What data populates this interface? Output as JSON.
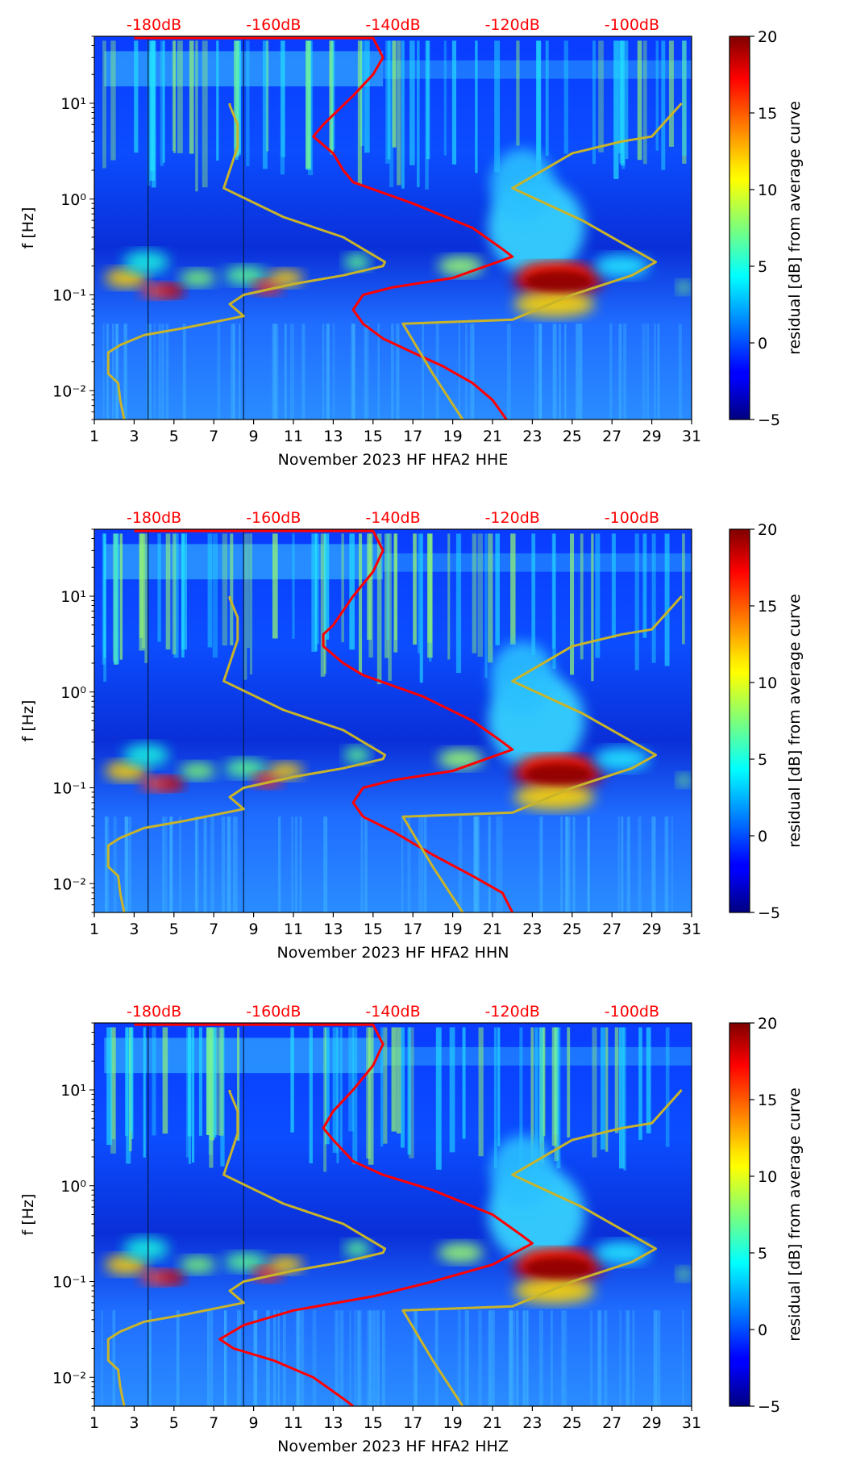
{
  "chart_data": [
    {
      "type": "heatmap",
      "title": "",
      "xlabel": "November 2023 HF HFA2  HHE",
      "ylabel": "f [Hz]",
      "xlim": [
        1,
        31
      ],
      "ylim": [
        0.005,
        50
      ],
      "yscale": "log",
      "x_ticks": [
        "1",
        "3",
        "5",
        "7",
        "9",
        "11",
        "13",
        "15",
        "17",
        "19",
        "21",
        "23",
        "25",
        "27",
        "29",
        "31"
      ],
      "y_ticks": [
        {
          "value": 0.01,
          "label": "10⁻²"
        },
        {
          "value": 0.1,
          "label": "10⁻¹"
        },
        {
          "value": 1,
          "label": "10⁰"
        },
        {
          "value": 10,
          "label": "10¹"
        }
      ],
      "db_axis": {
        "labels": [
          "-180dB",
          "-160dB",
          "-140dB",
          "-120dB",
          "-100dB"
        ],
        "positions_day": [
          4,
          10,
          16,
          22,
          28
        ],
        "color": "#ff0000"
      },
      "colorbar": {
        "label": "residual [dB] from average curve",
        "range": [
          -5,
          20
        ],
        "ticks": [
          "−5",
          "0",
          "5",
          "10",
          "15",
          "20"
        ],
        "colormap": "jet"
      },
      "series": [
        {
          "name": "average curve",
          "color": "#ff0000",
          "points": [
            [
              3,
              48
            ],
            [
              15,
              48
            ],
            [
              15.5,
              30
            ],
            [
              15,
              20
            ],
            [
              14,
              12
            ],
            [
              12.5,
              6
            ],
            [
              12,
              4.5
            ],
            [
              13,
              3
            ],
            [
              13.5,
              2
            ],
            [
              14,
              1.5
            ],
            [
              17,
              0.9
            ],
            [
              20,
              0.5
            ],
            [
              21.5,
              0.3
            ],
            [
              22,
              0.25
            ],
            [
              19,
              0.15
            ],
            [
              16,
              0.12
            ],
            [
              14.5,
              0.1
            ],
            [
              14,
              0.07
            ],
            [
              14.5,
              0.05
            ],
            [
              15.5,
              0.035
            ],
            [
              17,
              0.025
            ],
            [
              18.5,
              0.018
            ],
            [
              20,
              0.012
            ],
            [
              21,
              0.008
            ],
            [
              21.7,
              0.005
            ]
          ]
        },
        {
          "name": "model curve",
          "color": "#c8b42a",
          "points": [
            [
              2.5,
              0.005
            ],
            [
              2.3,
              0.008
            ],
            [
              2.2,
              0.012
            ],
            [
              1.7,
              0.015
            ],
            [
              1.7,
              0.025
            ],
            [
              2.3,
              0.03
            ],
            [
              3.5,
              0.038
            ],
            [
              5.5,
              0.045
            ],
            [
              8.5,
              0.06
            ],
            [
              7.8,
              0.08
            ],
            [
              8.5,
              0.1
            ],
            [
              11,
              0.13
            ],
            [
              13.5,
              0.16
            ],
            [
              15.5,
              0.2
            ],
            [
              15.6,
              0.22
            ],
            [
              13.5,
              0.4
            ],
            [
              10.5,
              0.65
            ],
            [
              7.5,
              1.3
            ],
            [
              8.2,
              3.5
            ],
            [
              8.2,
              6
            ],
            [
              7.8,
              9.5
            ],
            [
              7.8,
              10
            ]
          ]
        },
        {
          "name": "model curve 2",
          "color": "#c8b42a",
          "points": [
            [
              19.5,
              0.005
            ],
            [
              18,
              0.015
            ],
            [
              16.5,
              0.05
            ],
            [
              22,
              0.055
            ],
            [
              25,
              0.1
            ],
            [
              28,
              0.16
            ],
            [
              29.2,
              0.22
            ],
            [
              25.5,
              0.6
            ],
            [
              22,
              1.3
            ],
            [
              25,
              3
            ],
            [
              27.5,
              4
            ],
            [
              29,
              4.5
            ],
            [
              30.5,
              10
            ]
          ]
        }
      ],
      "annotations": [
        "hot spot ~0.15 Hz days 22.5-25.5",
        "warm band ~0.1-0.2 Hz days 2-11"
      ]
    },
    {
      "type": "heatmap",
      "title": "",
      "xlabel": "November 2023 HF HFA2  HHN",
      "ylabel": "f [Hz]",
      "xlim": [
        1,
        31
      ],
      "ylim": [
        0.005,
        50
      ],
      "yscale": "log",
      "x_ticks": [
        "1",
        "3",
        "5",
        "7",
        "9",
        "11",
        "13",
        "15",
        "17",
        "19",
        "21",
        "23",
        "25",
        "27",
        "29",
        "31"
      ],
      "y_ticks": [
        {
          "value": 0.01,
          "label": "10⁻²"
        },
        {
          "value": 0.1,
          "label": "10⁻¹"
        },
        {
          "value": 1,
          "label": "10⁰"
        },
        {
          "value": 10,
          "label": "10¹"
        }
      ],
      "db_axis": {
        "labels": [
          "-180dB",
          "-160dB",
          "-140dB",
          "-120dB",
          "-100dB"
        ],
        "positions_day": [
          4,
          10,
          16,
          22,
          28
        ],
        "color": "#ff0000"
      },
      "colorbar": {
        "label": "residual [dB] from average curve",
        "range": [
          -5,
          20
        ],
        "ticks": [
          "−5",
          "0",
          "5",
          "10",
          "15",
          "20"
        ],
        "colormap": "jet"
      },
      "series": [
        {
          "name": "average curve",
          "color": "#ff0000",
          "points": [
            [
              3,
              48
            ],
            [
              15,
              48
            ],
            [
              15.5,
              30
            ],
            [
              15,
              18
            ],
            [
              14,
              10
            ],
            [
              13,
              5
            ],
            [
              12.5,
              4
            ],
            [
              12.5,
              3
            ],
            [
              13.5,
              2
            ],
            [
              14.5,
              1.5
            ],
            [
              17.5,
              0.9
            ],
            [
              20,
              0.5
            ],
            [
              21.5,
              0.3
            ],
            [
              22,
              0.25
            ],
            [
              19,
              0.15
            ],
            [
              16,
              0.12
            ],
            [
              14.5,
              0.1
            ],
            [
              14,
              0.07
            ],
            [
              14.5,
              0.05
            ],
            [
              16,
              0.035
            ],
            [
              18,
              0.02
            ],
            [
              20,
              0.012
            ],
            [
              21.5,
              0.008
            ],
            [
              22,
              0.005
            ]
          ]
        },
        {
          "name": "model curve",
          "color": "#c8b42a",
          "points": [
            [
              2.5,
              0.005
            ],
            [
              2.3,
              0.008
            ],
            [
              2.2,
              0.012
            ],
            [
              1.7,
              0.015
            ],
            [
              1.7,
              0.025
            ],
            [
              2.3,
              0.03
            ],
            [
              3.5,
              0.038
            ],
            [
              5.5,
              0.045
            ],
            [
              8.5,
              0.06
            ],
            [
              7.8,
              0.08
            ],
            [
              8.5,
              0.1
            ],
            [
              11,
              0.13
            ],
            [
              13.5,
              0.16
            ],
            [
              15.5,
              0.2
            ],
            [
              15.6,
              0.22
            ],
            [
              13.5,
              0.4
            ],
            [
              10.5,
              0.65
            ],
            [
              7.5,
              1.3
            ],
            [
              8.2,
              3.5
            ],
            [
              8.2,
              6
            ],
            [
              7.8,
              9.5
            ],
            [
              7.8,
              10
            ]
          ]
        },
        {
          "name": "model curve 2",
          "color": "#c8b42a",
          "points": [
            [
              19.5,
              0.005
            ],
            [
              18,
              0.015
            ],
            [
              16.5,
              0.05
            ],
            [
              22,
              0.055
            ],
            [
              25,
              0.1
            ],
            [
              28,
              0.16
            ],
            [
              29.2,
              0.22
            ],
            [
              25.5,
              0.6
            ],
            [
              22,
              1.3
            ],
            [
              25,
              3
            ],
            [
              27.5,
              4
            ],
            [
              29,
              4.5
            ],
            [
              30.5,
              10
            ]
          ]
        }
      ],
      "annotations": [
        "hot spot ~0.15 Hz days 22.5-25.5",
        "warm band ~0.1-0.2 Hz days 2-11"
      ]
    },
    {
      "type": "heatmap",
      "title": "",
      "xlabel": "November 2023 HF HFA2  HHZ",
      "ylabel": "f [Hz]",
      "xlim": [
        1,
        31
      ],
      "ylim": [
        0.005,
        50
      ],
      "yscale": "log",
      "x_ticks": [
        "1",
        "3",
        "5",
        "7",
        "9",
        "11",
        "13",
        "15",
        "17",
        "19",
        "21",
        "23",
        "25",
        "27",
        "29",
        "31"
      ],
      "y_ticks": [
        {
          "value": 0.01,
          "label": "10⁻²"
        },
        {
          "value": 0.1,
          "label": "10⁻¹"
        },
        {
          "value": 1,
          "label": "10⁰"
        },
        {
          "value": 10,
          "label": "10¹"
        }
      ],
      "db_axis": {
        "labels": [
          "-180dB",
          "-160dB",
          "-140dB",
          "-120dB",
          "-100dB"
        ],
        "positions_day": [
          4,
          10,
          16,
          22,
          28
        ],
        "color": "#ff0000"
      },
      "colorbar": {
        "label": "residual [dB] from average curve",
        "range": [
          -5,
          20
        ],
        "ticks": [
          "−5",
          "0",
          "5",
          "10",
          "15",
          "20"
        ],
        "colormap": "jet"
      },
      "series": [
        {
          "name": "average curve",
          "color": "#ff0000",
          "points": [
            [
              3,
              48
            ],
            [
              15,
              48
            ],
            [
              15.5,
              30
            ],
            [
              15,
              18
            ],
            [
              14,
              10
            ],
            [
              13,
              6
            ],
            [
              12.5,
              4
            ],
            [
              13,
              3
            ],
            [
              14,
              1.8
            ],
            [
              15.5,
              1.3
            ],
            [
              18,
              0.9
            ],
            [
              21,
              0.5
            ],
            [
              22.5,
              0.3
            ],
            [
              23,
              0.25
            ],
            [
              21,
              0.15
            ],
            [
              18,
              0.1
            ],
            [
              15,
              0.07
            ],
            [
              11,
              0.05
            ],
            [
              8.5,
              0.035
            ],
            [
              7.3,
              0.025
            ],
            [
              8,
              0.02
            ],
            [
              10,
              0.015
            ],
            [
              12,
              0.01
            ],
            [
              13.5,
              0.006
            ],
            [
              14,
              0.005
            ]
          ]
        },
        {
          "name": "model curve",
          "color": "#c8b42a",
          "points": [
            [
              2.5,
              0.005
            ],
            [
              2.3,
              0.008
            ],
            [
              2.2,
              0.012
            ],
            [
              1.7,
              0.015
            ],
            [
              1.7,
              0.025
            ],
            [
              2.3,
              0.03
            ],
            [
              3.5,
              0.038
            ],
            [
              5.5,
              0.045
            ],
            [
              8.5,
              0.06
            ],
            [
              7.8,
              0.08
            ],
            [
              8.5,
              0.1
            ],
            [
              11,
              0.13
            ],
            [
              13.5,
              0.16
            ],
            [
              15.5,
              0.2
            ],
            [
              15.6,
              0.22
            ],
            [
              13.5,
              0.4
            ],
            [
              10.5,
              0.65
            ],
            [
              7.5,
              1.3
            ],
            [
              8.2,
              3.5
            ],
            [
              8.2,
              6
            ],
            [
              7.8,
              9.5
            ],
            [
              7.8,
              10
            ]
          ]
        },
        {
          "name": "model curve 2",
          "color": "#c8b42a",
          "points": [
            [
              19.5,
              0.005
            ],
            [
              18,
              0.015
            ],
            [
              16.5,
              0.05
            ],
            [
              22,
              0.055
            ],
            [
              25,
              0.1
            ],
            [
              28,
              0.16
            ],
            [
              29.2,
              0.22
            ],
            [
              25.5,
              0.6
            ],
            [
              22,
              1.3
            ],
            [
              25,
              3
            ],
            [
              27.5,
              4
            ],
            [
              29,
              4.5
            ],
            [
              30.5,
              10
            ]
          ]
        }
      ],
      "annotations": [
        "hot spot ~0.15 Hz days 22.5-25.5",
        "warm band ~0.1-0.2 Hz days 2-11"
      ]
    }
  ]
}
